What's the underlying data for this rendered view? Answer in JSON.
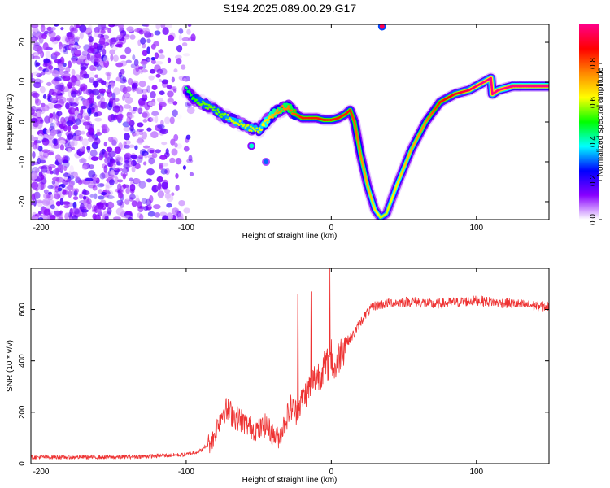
{
  "title": "S194.2025.089.00.29.G17",
  "chart_data": [
    {
      "type": "heatmap",
      "xlabel": "Height of straight line (km)",
      "ylabel": "Frequency (Hz)",
      "xlim": [
        -207,
        150
      ],
      "ylim": [
        -24.5,
        24.5
      ],
      "xticks": [
        -200,
        -100,
        0,
        100
      ],
      "yticks": [
        -20,
        -10,
        0,
        10,
        20
      ],
      "colorbar": {
        "label": "Normalized spectral amplitude",
        "range": [
          0,
          1
        ],
        "ticks": [
          "0.0",
          "0.2",
          "0.4",
          "0.6",
          "0.8"
        ],
        "tick_values": [
          0,
          0.2,
          0.4,
          0.6,
          0.8
        ],
        "colormap": [
          "#ffffff",
          "#8800ff",
          "#0000ff",
          "#00ffff",
          "#00ff00",
          "#ffff00",
          "#ff8800",
          "#ff0000",
          "#ff0088"
        ]
      },
      "scatter_region": {
        "x_range": [
          -207,
          -95
        ],
        "y_range": [
          -24.5,
          24.5
        ],
        "amplitude_range": [
          0.0,
          0.3
        ]
      },
      "ridge": {
        "x": [
          -100,
          -95,
          -90,
          -85,
          -80,
          -75,
          -70,
          -65,
          -60,
          -55,
          -50,
          -45,
          -40,
          -35,
          -30,
          -25,
          -20,
          -15,
          -10,
          -5,
          0,
          5,
          10,
          13,
          16,
          20,
          25,
          30,
          34,
          38,
          45,
          55,
          65,
          75,
          85,
          95,
          105,
          110,
          111,
          115,
          120,
          125,
          130,
          140,
          150
        ],
        "y": [
          8,
          6,
          5,
          4,
          3,
          1.5,
          1,
          0,
          -1,
          -1.5,
          -2,
          0,
          2,
          3,
          4,
          2,
          1,
          1,
          1,
          0.5,
          0.5,
          1,
          2,
          3,
          0,
          -8,
          -16,
          -22,
          -24,
          -23,
          -16,
          -7,
          0,
          5,
          7,
          8,
          10,
          11,
          7,
          8,
          8.5,
          9,
          9,
          9,
          9
        ],
        "amplitude": [
          0.3,
          0.35,
          0.4,
          0.4,
          0.4,
          0.4,
          0.45,
          0.45,
          0.45,
          0.45,
          0.45,
          0.5,
          0.55,
          0.6,
          0.6,
          0.65,
          0.7,
          0.7,
          0.7,
          0.7,
          0.7,
          0.7,
          0.7,
          0.7,
          0.65,
          0.6,
          0.55,
          0.5,
          0.45,
          0.45,
          0.5,
          0.55,
          0.6,
          0.7,
          0.75,
          0.8,
          0.85,
          0.85,
          0.85,
          0.88,
          0.9,
          0.95,
          0.95,
          0.95,
          0.95
        ]
      },
      "isolated_blobs": [
        {
          "x": -55,
          "y": -6,
          "amplitude": 0.4
        },
        {
          "x": -45,
          "y": -10,
          "amplitude": 0.3
        },
        {
          "x": 35,
          "y": 24,
          "amplitude": 0.95
        }
      ]
    },
    {
      "type": "line",
      "xlabel": "Height of straight line (km)",
      "ylabel": "SNR (10 * v/v)",
      "xlim": [
        -207,
        150
      ],
      "ylim": [
        0,
        760
      ],
      "xticks": [
        -200,
        -100,
        0,
        100
      ],
      "yticks": [
        0,
        200,
        400,
        600
      ],
      "series": [
        {
          "color": "#ee3333",
          "x": [
            -207,
            -180,
            -150,
            -120,
            -100,
            -90,
            -82,
            -78,
            -74,
            -70,
            -66,
            -62,
            -58,
            -55,
            -50,
            -45,
            -40,
            -36,
            -32,
            -28,
            -24,
            -20,
            -16,
            -12,
            -8,
            -4,
            -1,
            0,
            2,
            6,
            10,
            15,
            20,
            25,
            30,
            40,
            50,
            60,
            70,
            80,
            90,
            100,
            110,
            120,
            130,
            140,
            150
          ],
          "y": [
            25,
            25,
            25,
            30,
            35,
            50,
            90,
            160,
            210,
            200,
            180,
            170,
            150,
            140,
            130,
            150,
            110,
            100,
            160,
            220,
            200,
            250,
            290,
            330,
            350,
            380,
            390,
            420,
            360,
            430,
            470,
            500,
            550,
            590,
            615,
            625,
            630,
            630,
            620,
            625,
            630,
            635,
            630,
            625,
            620,
            615,
            610
          ]
        }
      ],
      "spikes": [
        {
          "x": -23,
          "y": 660
        },
        {
          "x": -14,
          "y": 670
        },
        {
          "x": -1,
          "y": 760
        }
      ],
      "noise_amplitude": 20
    }
  ]
}
